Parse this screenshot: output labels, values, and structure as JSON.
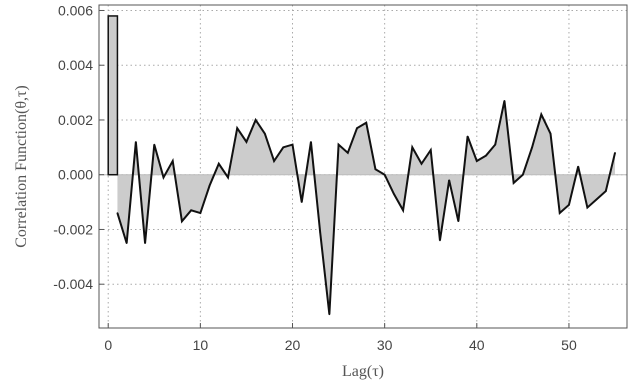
{
  "chart_data": {
    "type": "area",
    "xlabel": "Lag(τ)",
    "ylabel": "Correlation Function(θ,τ)",
    "xlim": [
      -1,
      56.3
    ],
    "ylim": [
      -0.0056,
      0.0062
    ],
    "x_ticks": [
      "0",
      "10",
      "20",
      "30",
      "40",
      "50"
    ],
    "y_ticks": [
      "-0.004",
      "-0.002",
      "0.000",
      "0.002",
      "0.004",
      "0.006"
    ],
    "grid": "dotted",
    "fill_color": "#cccccc",
    "line_color": "#111111",
    "x": [
      0,
      1,
      2,
      3,
      4,
      5,
      6,
      7,
      8,
      9,
      10,
      11,
      12,
      13,
      14,
      15,
      16,
      17,
      18,
      19,
      20,
      21,
      22,
      23,
      24,
      25,
      26,
      27,
      28,
      29,
      30,
      31,
      32,
      33,
      34,
      35,
      36,
      37,
      38,
      39,
      40,
      41,
      42,
      43,
      44,
      45,
      46,
      47,
      48,
      49,
      50,
      51,
      52,
      53,
      54,
      55
    ],
    "values": [
      0.0058,
      -0.0014,
      -0.0025,
      0.0012,
      -0.0025,
      0.0011,
      -0.0001,
      0.0005,
      -0.0017,
      -0.0013,
      -0.0014,
      -0.0004,
      0.0004,
      -0.0001,
      0.0017,
      0.0012,
      0.002,
      0.0015,
      0.0005,
      0.001,
      0.0011,
      -0.001,
      0.0012,
      -0.0021,
      -0.0051,
      0.0011,
      0.0008,
      0.0017,
      0.0019,
      0.0002,
      0.0,
      -0.0007,
      -0.0013,
      0.001,
      0.0004,
      0.0009,
      -0.0024,
      -0.0002,
      -0.0017,
      0.0014,
      0.0005,
      0.0007,
      0.0011,
      0.0027,
      -0.0003,
      0.0,
      0.001,
      0.0022,
      0.0015,
      -0.0014,
      -0.0011,
      0.0003,
      -0.0012,
      -0.0009,
      -0.0006,
      0.0008
    ]
  }
}
